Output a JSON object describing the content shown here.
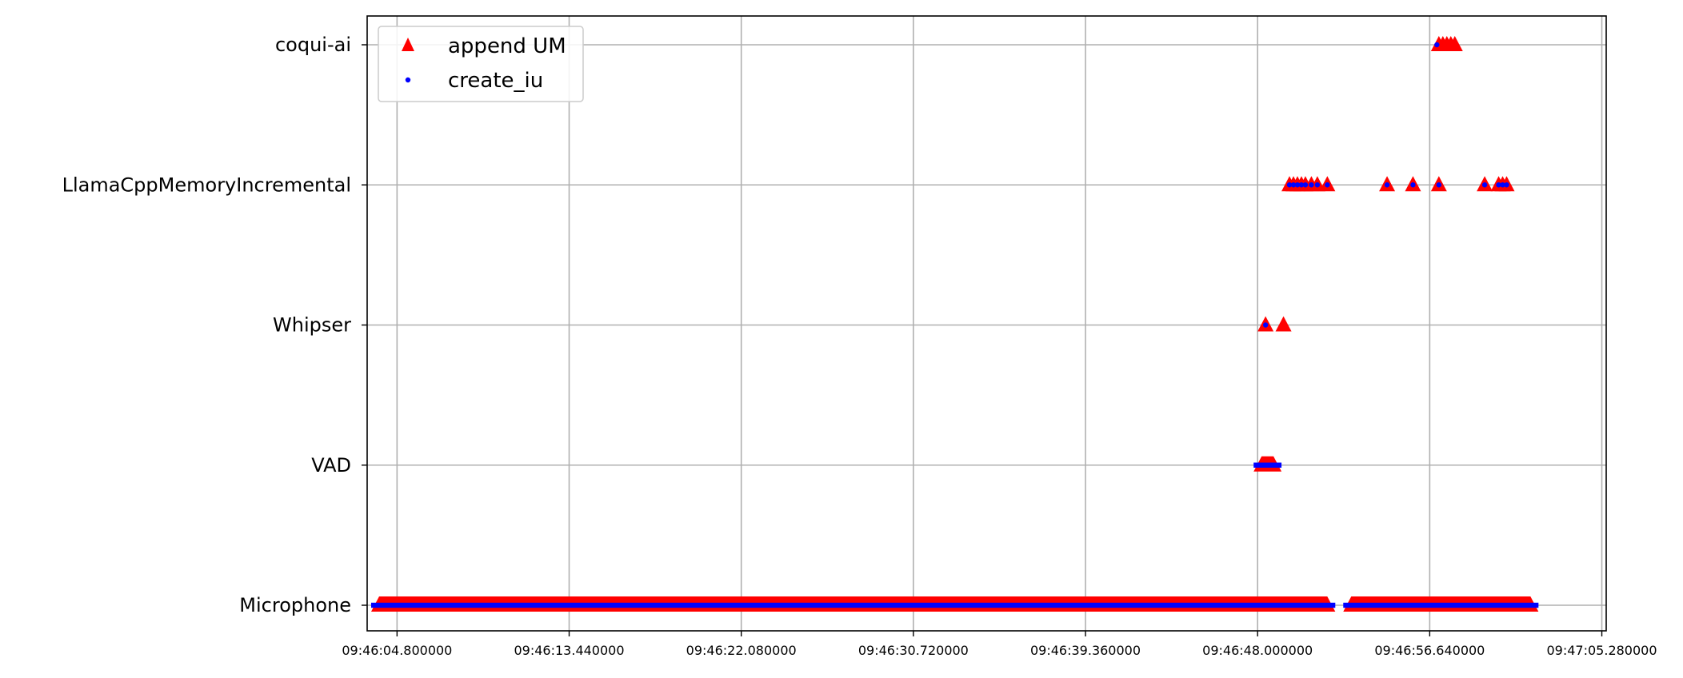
{
  "chart_data": {
    "type": "scatter",
    "title": "",
    "xlabel": "",
    "ylabel": "",
    "categories": [
      "Microphone",
      "VAD",
      "Whipser",
      "LlamaCppMemoryIncremental",
      "coqui-ai"
    ],
    "xlim": [
      "09:46:03.300000",
      "09:47:05.500000"
    ],
    "xticks": [
      "09:46:04.800000",
      "09:46:13.440000",
      "09:46:22.080000",
      "09:46:30.720000",
      "09:46:39.360000",
      "09:46:48.000000",
      "09:46:56.640000",
      "09:47:05.280000"
    ],
    "grid": true,
    "legend_position": "upper-left",
    "series": [
      {
        "name": "append UM",
        "marker": "triangle",
        "color": "#ff0000",
        "points": [
          {
            "category": "Microphone",
            "ranges": [
              [
                "09:46:03.500000",
                "09:46:51.900000"
              ],
              [
                "09:46:52.300000",
                "09:47:02.100000"
              ]
            ]
          },
          {
            "category": "VAD",
            "ranges": [
              [
                "09:46:47.800000",
                "09:46:49.200000"
              ]
            ]
          },
          {
            "category": "Whipser",
            "x": [
              "09:46:48.400000",
              "09:46:49.300000"
            ]
          },
          {
            "category": "LlamaCppMemoryIncremental",
            "x": [
              "09:46:49.600000",
              "09:46:49.800000",
              "09:46:50.000000",
              "09:46:50.200000",
              "09:46:50.400000",
              "09:46:50.700000",
              "09:46:51.000000",
              "09:46:51.500000",
              "09:46:54.500000",
              "09:46:55.800000",
              "09:46:57.100000",
              "09:46:59.400000",
              "09:47:00.100000",
              "09:47:00.300000",
              "09:47:00.500000"
            ]
          },
          {
            "category": "coqui-ai",
            "x": [
              "09:46:57.100000",
              "09:46:57.300000",
              "09:46:57.500000",
              "09:46:57.700000",
              "09:46:57.900000"
            ]
          }
        ]
      },
      {
        "name": "create_iu",
        "marker": "dot",
        "color": "#0000ff",
        "points": [
          {
            "category": "Microphone",
            "ranges": [
              [
                "09:46:03.500000",
                "09:46:51.900000"
              ],
              [
                "09:46:52.300000",
                "09:47:02.100000"
              ]
            ]
          },
          {
            "category": "VAD",
            "ranges": [
              [
                "09:46:47.800000",
                "09:46:49.200000"
              ]
            ]
          },
          {
            "category": "Whipser",
            "x": [
              "09:46:48.400000"
            ]
          },
          {
            "category": "LlamaCppMemoryIncremental",
            "x": [
              "09:46:49.600000",
              "09:46:49.800000",
              "09:46:50.000000",
              "09:46:50.200000",
              "09:46:50.400000",
              "09:46:50.700000",
              "09:46:51.000000",
              "09:46:51.500000",
              "09:46:54.500000",
              "09:46:55.800000",
              "09:46:57.100000",
              "09:46:59.400000",
              "09:47:00.100000",
              "09:47:00.300000",
              "09:47:00.500000"
            ]
          },
          {
            "category": "coqui-ai",
            "x": [
              "09:46:57.000000"
            ]
          }
        ]
      }
    ]
  }
}
